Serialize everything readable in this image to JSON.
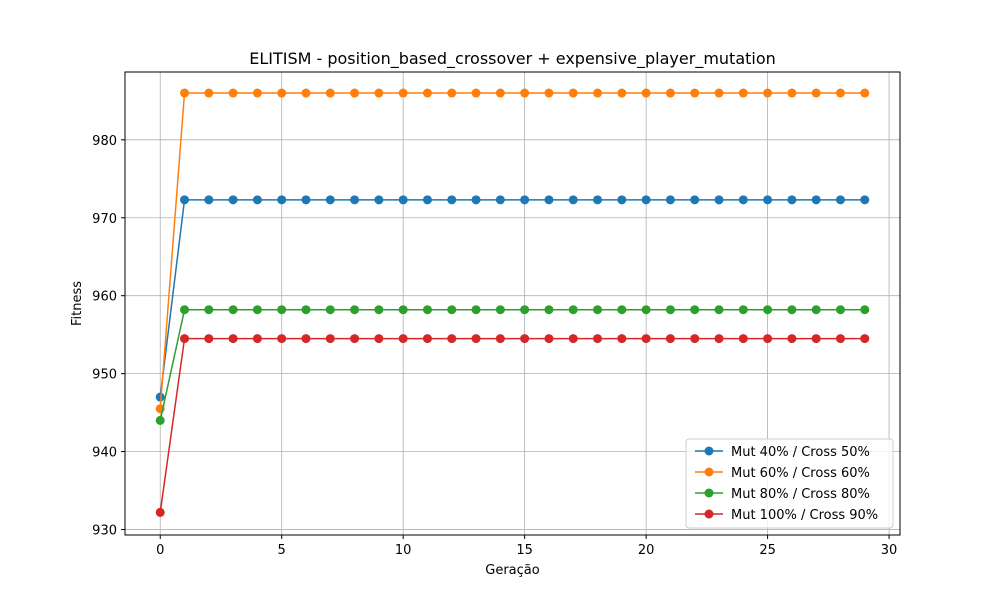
{
  "chart_data": {
    "type": "line",
    "title": "ELITISM - position_based_crossover + expensive_player_mutation",
    "xlabel": "Geração",
    "ylabel": "Fitness",
    "xlim": [
      -1.45,
      30.45
    ],
    "ylim": [
      929.3,
      988.7
    ],
    "xticks": [
      0,
      5,
      10,
      15,
      20,
      25,
      30
    ],
    "yticks": [
      930,
      940,
      950,
      960,
      970,
      980
    ],
    "grid": true,
    "legend_position": "lower right",
    "x": [
      0,
      1,
      2,
      3,
      4,
      5,
      6,
      7,
      8,
      9,
      10,
      11,
      12,
      13,
      14,
      15,
      16,
      17,
      18,
      19,
      20,
      21,
      22,
      23,
      24,
      25,
      26,
      27,
      28,
      29
    ],
    "series": [
      {
        "name": "Mut 40% / Cross 50%",
        "color": "#1f77b4",
        "start": 947.0,
        "plateau": 972.3
      },
      {
        "name": "Mut 60% / Cross 60%",
        "color": "#ff7f0e",
        "start": 945.5,
        "plateau": 986.0
      },
      {
        "name": "Mut 80% / Cross 80%",
        "color": "#2ca02c",
        "start": 944.0,
        "plateau": 958.2
      },
      {
        "name": "Mut 100% / Cross 90%",
        "color": "#d62728",
        "start": 932.2,
        "plateau": 954.5
      }
    ]
  }
}
